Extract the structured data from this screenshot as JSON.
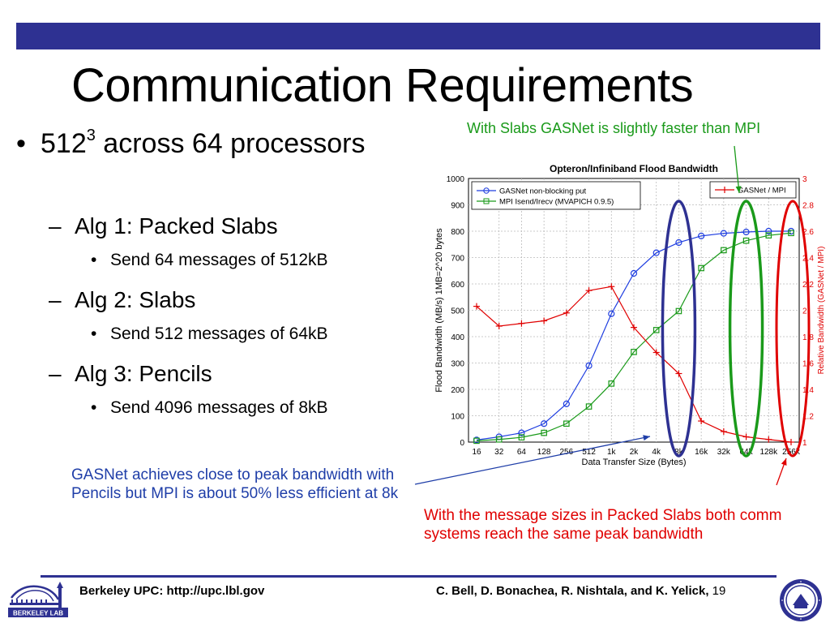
{
  "slide": {
    "title": "Communication Requirements",
    "bullet_main_prefix": "512",
    "bullet_main_sup": "3",
    "bullet_main_suffix": " across 64 processors",
    "algs": [
      {
        "label": "Alg 1: Packed Slabs",
        "detail": "Send 64 messages of 512kB"
      },
      {
        "label": "Alg 2: Slabs",
        "detail": "Send 512 messages of 64kB"
      },
      {
        "label": "Alg 3: Pencils",
        "detail": "Send 4096 messages of 8kB"
      }
    ],
    "annotation_green": "With Slabs GASNet is slightly faster than MPI",
    "annotation_blue": "GASNet achieves close to peak bandwidth with Pencils but MPI is about 50% less efficient at 8k",
    "annotation_red": "With the message sizes in Packed Slabs both comm systems reach the same peak bandwidth",
    "footer_left": "Berkeley UPC: http://upc.lbl.gov",
    "footer_authors": "C. Bell, D. Bonachea, R. Nishtala, and K. Yelick,",
    "page_number": "19",
    "logo_text": "BERKELEY LAB",
    "colors": {
      "bar": "#2e3192",
      "green": "#1a9a1a",
      "blue": "#1f3ea8",
      "red": "#e00000"
    }
  },
  "chart_data": {
    "type": "line",
    "title": "Opteron/Infiniband Flood Bandwidth",
    "xlabel": "Data Transfer Size (Bytes)",
    "ylabel": "Flood Bandwidth (MB/s)   1MB=2^20 bytes",
    "y2label": "Relative Bandwidth (GASNet / MPI)",
    "categories": [
      "16",
      "32",
      "64",
      "128",
      "256",
      "512",
      "1k",
      "2k",
      "4k",
      "8k",
      "16k",
      "32k",
      "64k",
      "128k",
      "256k"
    ],
    "ylim": [
      0,
      1000
    ],
    "yticks": [
      "0",
      "100",
      "200",
      "300",
      "400",
      "500",
      "600",
      "700",
      "800",
      "900",
      "1000"
    ],
    "y2lim": [
      1,
      3
    ],
    "y2ticks": [
      "1",
      "1.2",
      "1.4",
      "1.6",
      "1.8",
      "2",
      "2.2",
      "2.4",
      "2.6",
      "2.8",
      "3"
    ],
    "grid": true,
    "series": [
      {
        "name": "GASNet non-blocking put",
        "axis": "left",
        "marker": "circle",
        "color": "#1f3ee0",
        "values": [
          8,
          20,
          35,
          70,
          145,
          290,
          487,
          640,
          718,
          757,
          782,
          792,
          797,
          800,
          800
        ]
      },
      {
        "name": "MPI Isend/Irecv (MVAPICH 0.9.5)",
        "axis": "left",
        "marker": "square",
        "color": "#1a9a1a",
        "values": [
          5,
          10,
          18,
          35,
          70,
          135,
          222,
          342,
          425,
          497,
          660,
          728,
          764,
          784,
          793
        ]
      },
      {
        "name": "GASNet / MPI",
        "axis": "right",
        "marker": "plus",
        "color": "#e00000",
        "values": [
          2.03,
          1.88,
          1.9,
          1.92,
          1.98,
          2.15,
          2.18,
          1.87,
          1.68,
          1.52,
          1.16,
          1.08,
          1.04,
          1.02,
          1.0
        ]
      }
    ],
    "legend_left": "top-left",
    "legend_right": "top-right"
  }
}
